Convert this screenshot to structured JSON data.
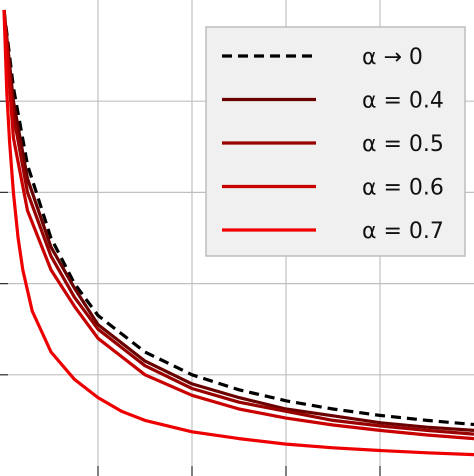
{
  "chart_data": {
    "type": "line",
    "grid": true,
    "xlim": [
      0,
      5
    ],
    "ylim": [
      0,
      1
    ],
    "legend_position": "top-right",
    "series": [
      {
        "name": "α → 0",
        "color": "#000000",
        "dash": true,
        "x": [
          0,
          0.1,
          0.25,
          0.5,
          0.75,
          1,
          1.5,
          2,
          2.5,
          3,
          3.5,
          4,
          4.5,
          5
        ],
        "y": [
          1,
          0.83,
          0.66,
          0.5,
          0.4,
          0.33,
          0.25,
          0.2,
          0.167,
          0.143,
          0.125,
          0.111,
          0.1,
          0.091
        ]
      },
      {
        "name": "α = 0.4",
        "color": "#6b0000",
        "dash": false,
        "x": [
          0,
          0.1,
          0.25,
          0.5,
          0.75,
          1,
          1.5,
          2,
          2.5,
          3,
          3.5,
          4,
          4.5,
          5
        ],
        "y": [
          1,
          0.8,
          0.63,
          0.48,
          0.39,
          0.31,
          0.23,
          0.18,
          0.15,
          0.125,
          0.11,
          0.095,
          0.085,
          0.078
        ]
      },
      {
        "name": "α = 0.5",
        "color": "#990000",
        "dash": false,
        "x": [
          0,
          0.1,
          0.25,
          0.5,
          0.75,
          1,
          1.5,
          2,
          2.5,
          3,
          3.5,
          4,
          4.5,
          5
        ],
        "y": [
          1,
          0.77,
          0.6,
          0.46,
          0.37,
          0.3,
          0.22,
          0.17,
          0.14,
          0.12,
          0.1,
          0.088,
          0.078,
          0.07
        ]
      },
      {
        "name": "α = 0.6",
        "color": "#c80000",
        "dash": false,
        "x": [
          0,
          0.1,
          0.25,
          0.5,
          0.75,
          1,
          1.5,
          2,
          2.5,
          3,
          3.5,
          4,
          4.5,
          5
        ],
        "y": [
          1,
          0.72,
          0.56,
          0.43,
          0.35,
          0.28,
          0.2,
          0.155,
          0.125,
          0.105,
          0.09,
          0.078,
          0.068,
          0.06
        ]
      },
      {
        "name": "α = 0.7",
        "color": "#ee0000",
        "dash": false,
        "x": [
          0,
          0.03,
          0.06,
          0.1,
          0.15,
          0.2,
          0.3,
          0.5,
          0.75,
          1,
          1.25,
          1.5,
          2,
          2.5,
          3,
          3.5,
          4,
          4.5,
          5
        ],
        "y": [
          1,
          0.82,
          0.71,
          0.6,
          0.5,
          0.43,
          0.34,
          0.25,
          0.19,
          0.15,
          0.12,
          0.1,
          0.075,
          0.06,
          0.048,
          0.04,
          0.034,
          0.029,
          0.025
        ]
      }
    ]
  }
}
